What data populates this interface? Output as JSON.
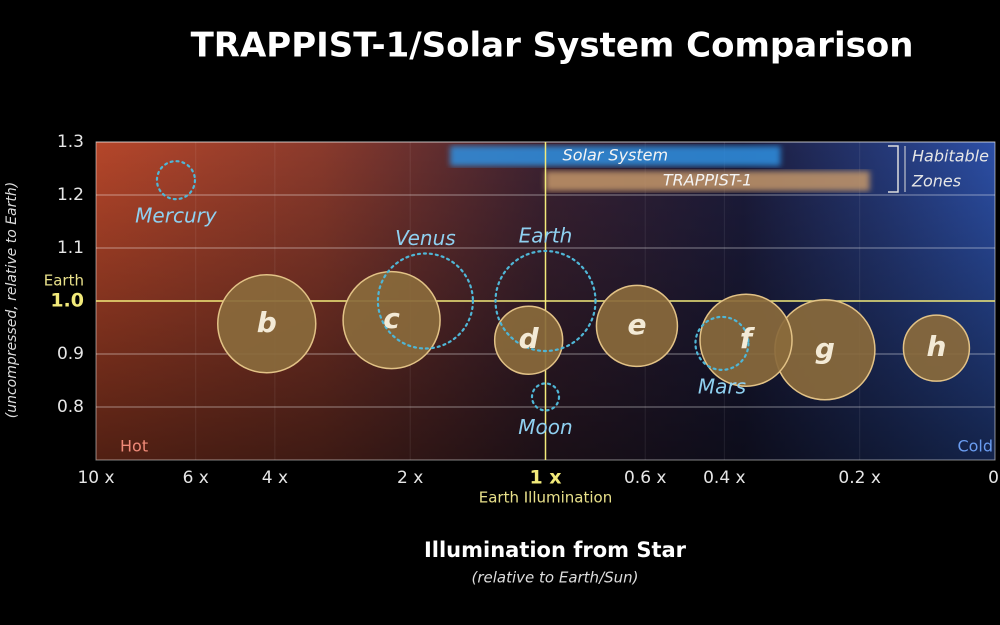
{
  "chart_data": {
    "type": "bubble",
    "title": "TRAPPIST-1/Solar System Comparison",
    "x_label": "Illumination from Star",
    "x_sublabel": "(relative to Earth/Sun)",
    "y_label": "(uncompressed, relative to Earth)",
    "xscale": "log",
    "xlim": [
      10,
      0.1
    ],
    "xticks": [
      {
        "value": 10,
        "label": "10 x"
      },
      {
        "value": 6,
        "label": "6 x"
      },
      {
        "value": 4,
        "label": "4 x"
      },
      {
        "value": 2,
        "label": "2 x"
      },
      {
        "value": 1,
        "label": "1 x"
      },
      {
        "value": 0.6,
        "label": "0.6 x"
      },
      {
        "value": 0.4,
        "label": "0.4 x"
      },
      {
        "value": 0.2,
        "label": "0.2 x"
      },
      0
    ],
    "ylim": [
      0.7,
      1.3
    ],
    "yticks": [
      0.8,
      0.9,
      {
        "value": 1,
        "label": "1.0"
      },
      1.1,
      1.2,
      1.3
    ],
    "grid": true,
    "x_reference": 1,
    "x_reference_label": "Earth Illumination",
    "y_reference": 1,
    "y_reference_label": "Earth",
    "hot_label": "Hot",
    "cold_label": "Cold",
    "habitable_zones": {
      "label": [
        "Habitable",
        "Zones"
      ],
      "zones": [
        {
          "name": "Solar System",
          "color": "#2f8fe0",
          "range": [
            1.63,
            0.3
          ]
        },
        {
          "name": "TRAPPIST-1",
          "color": "#c4976a",
          "range": [
            1,
            0.19
          ]
        }
      ]
    },
    "series": [
      {
        "color": "#8a6a3c",
        "edge": "#e2c286",
        "style": "solid",
        "labels": [
          "b",
          "c",
          "d",
          "e",
          "f",
          "g",
          "h"
        ],
        "x": [
          4.17,
          2.2,
          1.09,
          0.626,
          0.358,
          0.239,
          0.135
        ],
        "values": [
          0.957,
          0.964,
          0.926,
          0.953,
          0.926,
          0.908,
          0.911
        ],
        "sizes": [
          0.98,
          0.97,
          0.68,
          0.81,
          0.92,
          1.0,
          0.66
        ]
      },
      {
        "color": "#4fb6d6",
        "style": "dashed",
        "labels": [
          "Mercury",
          "Venus",
          "Earth",
          "Mars",
          "Moon"
        ],
        "x": [
          6.64,
          1.85,
          1,
          0.405,
          1
        ],
        "values": [
          1.228,
          1.0,
          1.0,
          0.92,
          0.819
        ],
        "sizes": [
          0.38,
          0.95,
          1.0,
          0.53,
          0.27
        ]
      }
    ]
  }
}
